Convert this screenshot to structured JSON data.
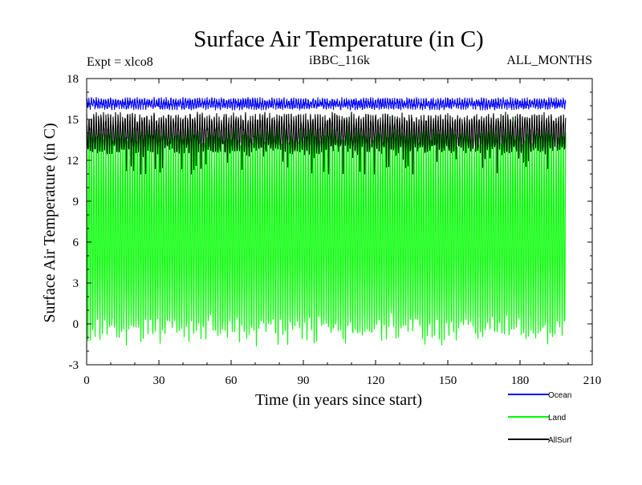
{
  "chart_data": {
    "type": "line",
    "title": "Surface Air Temperature (in C)",
    "subtitle_left": "Expt = xlco8",
    "subtitle_center": "iBBC_116k",
    "subtitle_right": "ALL_MONTHS",
    "xlabel": "Time (in years since start)",
    "ylabel": "Surface Air Temperature (in C)",
    "xlim": [
      0,
      210
    ],
    "ylim": [
      -3,
      18
    ],
    "xticks": [
      0,
      30,
      60,
      90,
      120,
      150,
      180,
      210
    ],
    "yticks": [
      -3,
      0,
      3,
      6,
      9,
      12,
      15,
      18
    ],
    "x_end": 199,
    "samples_per_year": 12,
    "series": [
      {
        "name": "Ocean",
        "color": "#0000ff",
        "min_approx": 15.7,
        "max_approx": 16.8,
        "mean_approx": 16.15
      },
      {
        "name": "Land",
        "color": "#00ff00",
        "min_approx": -2.0,
        "max_approx": 15.2,
        "mean_approx": 6.8
      },
      {
        "name": "AllSurf",
        "color": "#000000",
        "min_approx": 11.0,
        "max_approx": 15.9,
        "mean_approx": 14.0
      }
    ]
  }
}
